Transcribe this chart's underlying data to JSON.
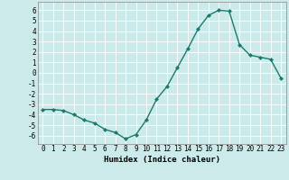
{
  "x": [
    0,
    1,
    2,
    3,
    4,
    5,
    6,
    7,
    8,
    9,
    10,
    11,
    12,
    13,
    14,
    15,
    16,
    17,
    18,
    19,
    20,
    21,
    22,
    23
  ],
  "y": [
    -3.5,
    -3.5,
    -3.6,
    -4.0,
    -4.5,
    -4.8,
    -5.4,
    -5.7,
    -6.3,
    -5.9,
    -4.5,
    -2.5,
    -1.3,
    0.5,
    2.3,
    4.2,
    5.5,
    6.0,
    5.9,
    2.7,
    1.7,
    1.5,
    1.3,
    -0.5
  ],
  "ylim": [
    -6.8,
    6.8
  ],
  "yticks": [
    -6,
    -5,
    -4,
    -3,
    -2,
    -1,
    0,
    1,
    2,
    3,
    4,
    5,
    6
  ],
  "xticks": [
    0,
    1,
    2,
    3,
    4,
    5,
    6,
    7,
    8,
    9,
    10,
    11,
    12,
    13,
    14,
    15,
    16,
    17,
    18,
    19,
    20,
    21,
    22,
    23
  ],
  "xlabel": "Humidex (Indice chaleur)",
  "line_color": "#1a7a6e",
  "marker": "D",
  "marker_size": 2,
  "bg_color": "#cceaea",
  "grid_color": "#ffffff",
  "tick_fontsize": 5.5,
  "xlabel_fontsize": 6.5
}
